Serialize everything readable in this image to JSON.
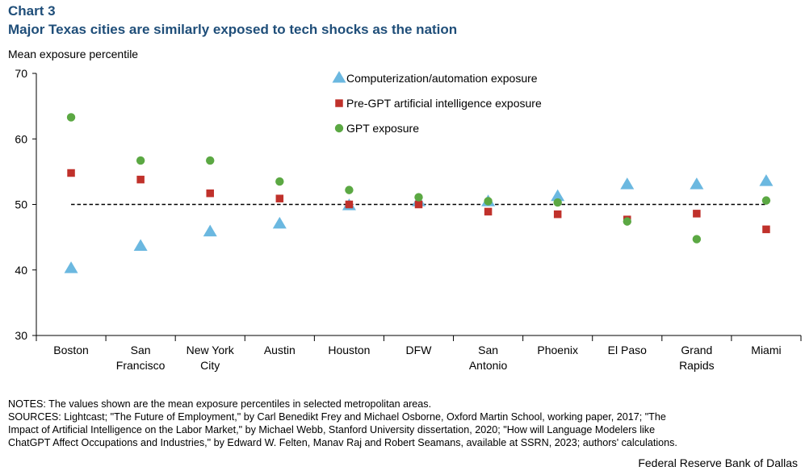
{
  "header": {
    "chart_number": "Chart 3",
    "title": "Major Texas cities are similarly exposed to tech shocks as the nation"
  },
  "chart_data": {
    "type": "scatter",
    "title": "Major Texas cities are similarly exposed to tech shocks as the nation",
    "ylabel": "Mean exposure percentile",
    "xlabel": "",
    "ylim": [
      30,
      70
    ],
    "yticks": [
      30,
      40,
      50,
      60,
      70
    ],
    "reference_line": 50,
    "categories": [
      [
        "Boston"
      ],
      [
        "San",
        "Francisco"
      ],
      [
        "New York",
        "City"
      ],
      [
        "Austin"
      ],
      [
        "Houston"
      ],
      [
        "DFW"
      ],
      [
        "San",
        "Antonio"
      ],
      [
        "Phoenix"
      ],
      [
        "El Paso"
      ],
      [
        "Grand",
        "Rapids"
      ],
      [
        "Miami"
      ]
    ],
    "series": [
      {
        "name": "Computerization/automation exposure",
        "marker": "triangle",
        "color": "#6bb8e0",
        "values": [
          40.2,
          43.6,
          45.8,
          47.0,
          49.8,
          50.4,
          50.4,
          51.2,
          53.0,
          53.0,
          53.5
        ]
      },
      {
        "name": "Pre-GPT artificial intelligence exposure",
        "marker": "square",
        "color": "#c0312b",
        "values": [
          54.8,
          53.8,
          51.7,
          50.9,
          50.0,
          50.0,
          48.9,
          48.5,
          47.7,
          48.6,
          46.2
        ]
      },
      {
        "name": "GPT exposure",
        "marker": "circle",
        "color": "#5ba843",
        "values": [
          63.3,
          56.7,
          56.7,
          53.5,
          52.2,
          51.1,
          50.5,
          50.3,
          47.4,
          44.7,
          50.6
        ]
      }
    ]
  },
  "footer": {
    "notes": "NOTES: The values shown are the mean exposure percentiles in selected metropolitan areas.",
    "sources": [
      "SOURCES: Lightcast; \"The Future of Employment,\" by Carl Benedikt Frey and Michael Osborne, Oxford Martin School, working paper, 2017; \"The",
      "Impact of Artificial Intelligence on the Labor Market,\" by Michael Webb, Stanford University dissertation, 2020; \"How will Language Modelers like",
      "ChatGPT Affect Occupations and Industries,\" by Edward W. Felten, Manav Raj and Robert Seamans, available at SSRN, 2023; authors' calculations."
    ],
    "credit": "Federal Reserve Bank of Dallas"
  }
}
